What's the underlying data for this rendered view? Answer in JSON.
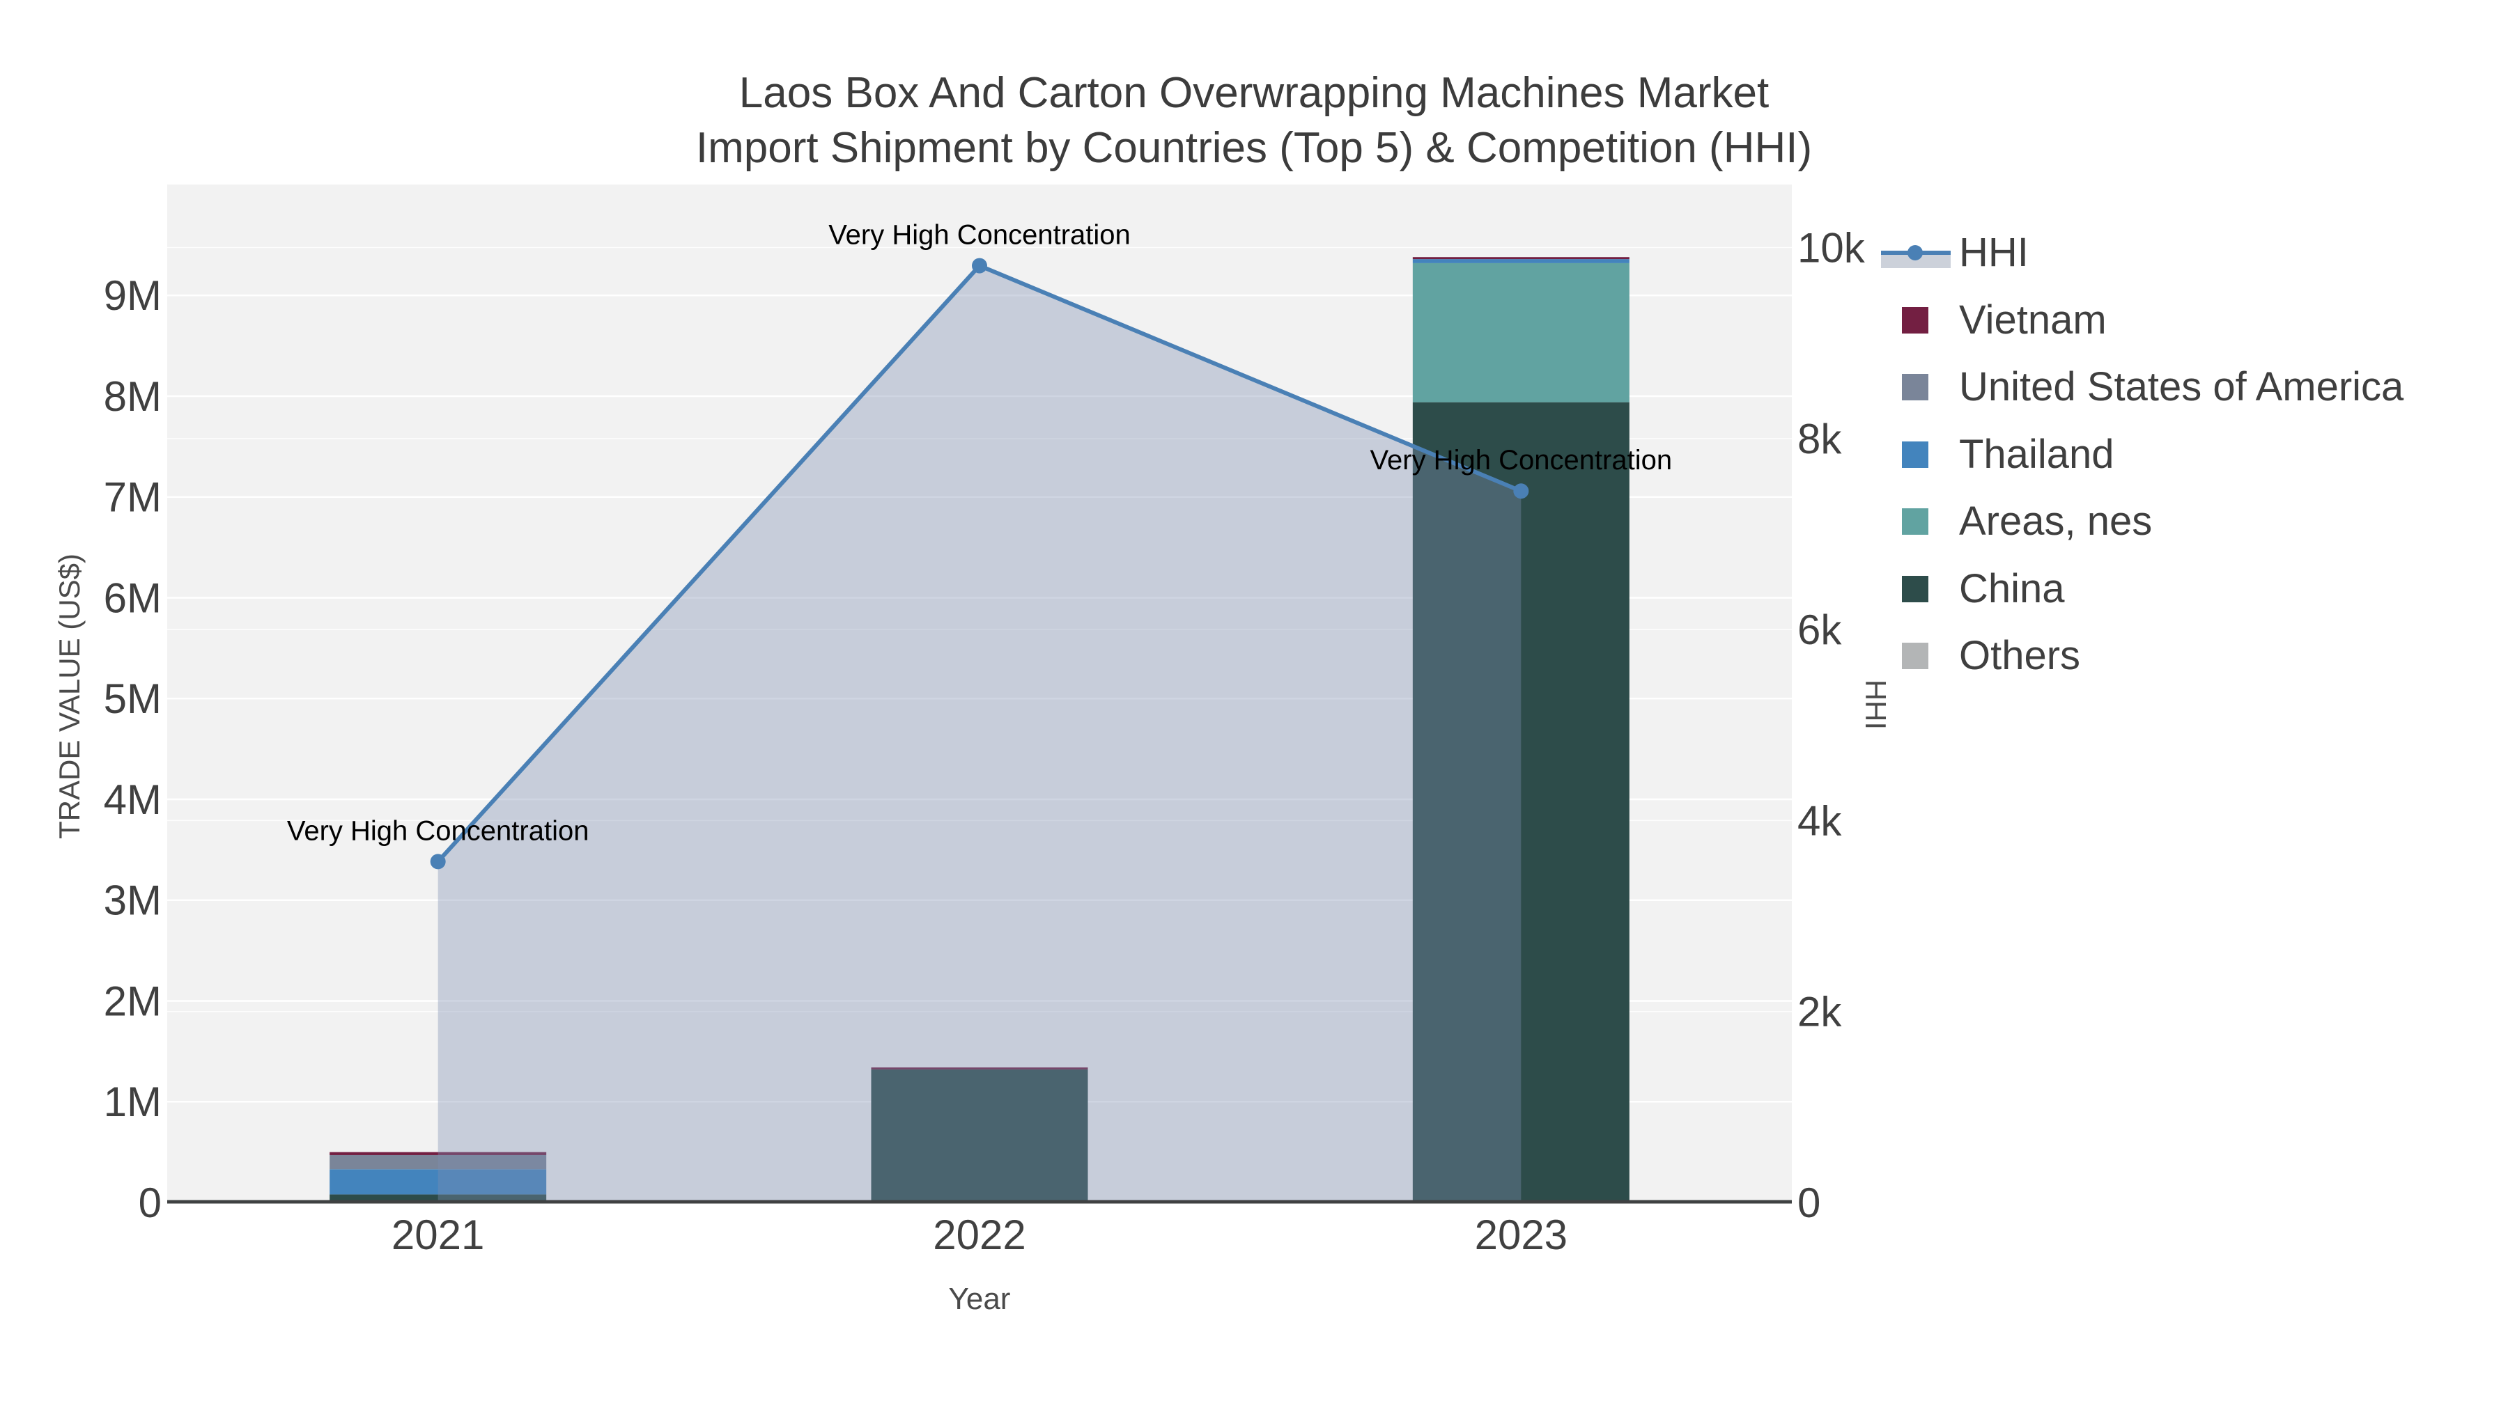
{
  "title": {
    "line1": "Laos Box And Carton Overwrapping Machines Market",
    "line2": "Import Shipment by Countries (Top 5) & Competition (HHI)"
  },
  "colors": {
    "plot_bg": "#f2f2f2",
    "grid": "#ffffff",
    "axis_line": "#3f4142",
    "tick_text": "#404040",
    "annotation_text": "#000000",
    "hhi_line": "#4a80b5",
    "hhi_area_fill": "rgba(125,142,175,0.37)",
    "hhi_legend_band": "#ccd1da"
  },
  "chart_data": {
    "type": "combo: stacked bar (left axis) + line with area fill (right axis)",
    "categories": [
      "2021",
      "2022",
      "2023"
    ],
    "x_axis": {
      "title": "Year"
    },
    "left_axis": {
      "title": "TRADE VALUE (US$)",
      "tick_labels": [
        "0",
        "1M",
        "2M",
        "3M",
        "4M",
        "5M",
        "6M",
        "7M",
        "8M",
        "9M"
      ],
      "tick_values": [
        0,
        1000000,
        2000000,
        3000000,
        4000000,
        5000000,
        6000000,
        7000000,
        8000000,
        9000000
      ],
      "range": [
        0,
        10100000
      ]
    },
    "right_axis": {
      "title": "HHI",
      "tick_labels": [
        "0",
        "2k",
        "4k",
        "6k",
        "8k",
        "10k"
      ],
      "tick_values": [
        0,
        2000,
        4000,
        6000,
        8000,
        10000
      ],
      "range": [
        0,
        10660
      ]
    },
    "bar_series": [
      {
        "name": "China",
        "color": "#2d4c4a",
        "values": [
          80000,
          1320000,
          7940000
        ]
      },
      {
        "name": "Areas, nes",
        "color": "#61a3a1",
        "values": [
          0,
          0,
          1380000
        ]
      },
      {
        "name": "Thailand",
        "color": "#4384bd",
        "values": [
          250000,
          0,
          40000
        ]
      },
      {
        "name": "United States of America",
        "color": "#7a8599",
        "values": [
          140000,
          0,
          0
        ]
      },
      {
        "name": "Vietnam",
        "color": "#731f42",
        "values": [
          30000,
          20000,
          20000
        ]
      },
      {
        "name": "Others",
        "color": "#b3b5b6",
        "values": [
          0,
          0,
          0
        ]
      }
    ],
    "line_series": {
      "name": "HHI",
      "axis": "right",
      "values": [
        3570,
        9810,
        7450
      ]
    },
    "annotations": [
      {
        "text": "Very High Concentration",
        "category": "2021"
      },
      {
        "text": "Very High Concentration",
        "category": "2022"
      },
      {
        "text": "Very High Concentration",
        "category": "2023"
      }
    ],
    "legend_position": "right",
    "grid": true,
    "legend": [
      {
        "label": "HHI",
        "swatch": "line",
        "color": "#4a80b5"
      },
      {
        "label": "Vietnam",
        "swatch": "square",
        "color": "#731f42"
      },
      {
        "label": "United States of America",
        "swatch": "square",
        "color": "#7a8599"
      },
      {
        "label": "Thailand",
        "swatch": "square",
        "color": "#4384bd"
      },
      {
        "label": "Areas, nes",
        "swatch": "square",
        "color": "#61a3a1"
      },
      {
        "label": "China",
        "swatch": "square",
        "color": "#2d4c4a"
      },
      {
        "label": "Others",
        "swatch": "square",
        "color": "#b3b5b6"
      }
    ]
  }
}
